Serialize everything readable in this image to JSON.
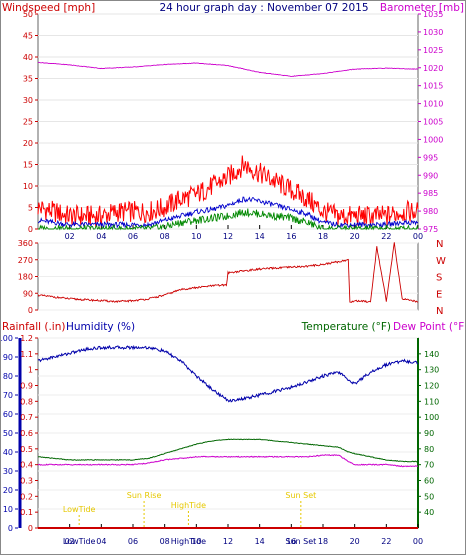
{
  "header": {
    "left_label": "Windspeed [mph]",
    "title": "24 hour graph day : November 07 2015",
    "right_label": "Barometer [mb]"
  },
  "colors": {
    "wind_gust": "#ff0000",
    "wind_avg": "#0000cc",
    "wind_low": "#008800",
    "barometer": "#cc00cc",
    "direction": "#cc0000",
    "rain": "#cc0000",
    "humidity": "#0000aa",
    "temperature": "#006600",
    "dewpoint": "#cc00cc",
    "annotation": "#e6c800"
  },
  "chart_data": [
    {
      "id": "wind",
      "type": "line",
      "x_ticks": [
        "02",
        "04",
        "06",
        "08",
        "10",
        "12",
        "14",
        "16",
        "18",
        "20",
        "22",
        "00"
      ],
      "ylim_left": [
        0,
        50
      ],
      "left_ticks": [
        "50",
        "45",
        "40",
        "35",
        "30",
        "25",
        "20",
        "15",
        "10",
        "5",
        "0"
      ],
      "ylim_right": [
        975,
        1035
      ],
      "right_ticks": [
        "1035",
        "1030",
        "1025",
        "1020",
        "1015",
        "1010",
        "1005",
        "1000",
        "995",
        "990",
        "985",
        "980",
        "975"
      ],
      "series": [
        {
          "key": "gust",
          "axis": "left",
          "x": [
            0,
            1,
            2,
            3,
            4,
            5,
            6,
            7,
            8,
            9,
            10,
            11,
            12,
            13,
            14,
            15,
            16,
            17,
            18,
            19,
            20,
            21,
            22,
            23,
            24
          ],
          "y": [
            5,
            4,
            3,
            3,
            3,
            4,
            4,
            4,
            5,
            7,
            8,
            10,
            12,
            15,
            13,
            11,
            9,
            7,
            4,
            3,
            3,
            3,
            3,
            4,
            4
          ]
        },
        {
          "key": "avg",
          "axis": "left",
          "x": [
            0,
            1,
            2,
            3,
            4,
            5,
            6,
            7,
            8,
            9,
            10,
            11,
            12,
            13,
            14,
            15,
            16,
            17,
            18,
            19,
            20,
            21,
            22,
            23,
            24
          ],
          "y": [
            2,
            1.5,
            1,
            1,
            1,
            1,
            1,
            1,
            2,
            3,
            4,
            4.5,
            5.5,
            7,
            6.5,
            5.5,
            4.5,
            3.5,
            1.5,
            1,
            1,
            1,
            1,
            1.5,
            1.5
          ]
        },
        {
          "key": "low",
          "axis": "left",
          "x": [
            0,
            1,
            2,
            3,
            4,
            5,
            6,
            7,
            8,
            9,
            10,
            11,
            12,
            13,
            14,
            15,
            16,
            17,
            18,
            19,
            20,
            21,
            22,
            23,
            24
          ],
          "y": [
            0,
            0,
            0,
            0,
            0,
            0,
            0,
            0,
            0.5,
            1.5,
            2,
            2.5,
            3,
            4,
            3.5,
            3,
            2.5,
            1.5,
            0,
            0,
            0,
            0,
            0,
            0,
            0
          ]
        },
        {
          "key": "barometer",
          "axis": "right",
          "x": [
            0,
            2,
            4,
            6,
            8,
            10,
            12,
            14,
            16,
            18,
            20,
            22,
            24
          ],
          "y": [
            1021.5,
            1020.8,
            1019.8,
            1020.2,
            1020.9,
            1021.3,
            1020.6,
            1018.7,
            1017.6,
            1018.4,
            1019.6,
            1019.9,
            1019.6
          ]
        }
      ]
    },
    {
      "id": "direction",
      "type": "line",
      "ylim": [
        0,
        360
      ],
      "left_ticks": [
        "360",
        "270",
        "180",
        "90",
        "0"
      ],
      "compass_labels": [
        "N",
        "W",
        "S",
        "E",
        "N"
      ],
      "series": [
        {
          "key": "direction",
          "x": [
            0,
            1,
            2,
            3,
            4,
            5,
            6,
            7,
            8,
            9,
            10,
            11,
            11.9,
            12,
            13,
            14,
            15,
            16,
            17,
            18,
            19,
            19.6,
            19.7,
            20,
            21,
            21.4,
            22,
            22.5,
            23,
            24
          ],
          "y": [
            80,
            70,
            60,
            55,
            50,
            45,
            50,
            60,
            80,
            110,
            120,
            130,
            135,
            200,
            210,
            220,
            225,
            230,
            235,
            245,
            260,
            270,
            40,
            50,
            45,
            340,
            45,
            360,
            60,
            45
          ]
        }
      ]
    },
    {
      "id": "climate",
      "type": "line",
      "left_label": "Rainfall (.in)",
      "left_label2": "Humidity (%)",
      "right_label": "Temperature (°F)",
      "right_label2": "Dew Point (°F)",
      "x_ticks": [
        "02",
        "04",
        "06",
        "08",
        "10",
        "12",
        "14",
        "16",
        "18",
        "20",
        "22",
        "00"
      ],
      "ylim_humidity": [
        0,
        100
      ],
      "humidity_ticks": [
        "100",
        "90",
        "80",
        "70",
        "60",
        "50",
        "40",
        "30",
        "20",
        "10",
        "0"
      ],
      "ylim_rain": [
        0,
        1.2
      ],
      "rain_ticks": [
        "1.2",
        "1.1",
        "1",
        "0.9",
        "0.8",
        "0.7",
        "0.6",
        "0.5",
        "0.4",
        "0.3",
        "0.2",
        "0.1",
        "0"
      ],
      "ylim_temp": [
        30,
        150
      ],
      "temp_ticks": [
        "140",
        "130",
        "120",
        "110",
        "100",
        "90",
        "80",
        "70",
        "60",
        "50",
        "40"
      ],
      "annotations": [
        {
          "text": "LowTide",
          "x": 2.6,
          "row": "low"
        },
        {
          "text": "Sun Rise",
          "x": 6.7,
          "row": "high"
        },
        {
          "text": "HighTide",
          "x": 9.5,
          "row": "mid"
        },
        {
          "text": "Sun Set",
          "x": 16.6,
          "row": "high"
        }
      ],
      "bottom_text": [
        {
          "text": "LowTide",
          "x": 2.6
        },
        {
          "text": "HighTide",
          "x": 9.5
        },
        {
          "text": "Sun Set",
          "x": 16.6
        }
      ],
      "series": [
        {
          "key": "humidity",
          "axis": "humidity",
          "x": [
            0,
            1,
            2,
            3,
            4,
            5,
            6,
            7,
            8,
            9,
            10,
            11,
            12,
            13,
            14,
            15,
            16,
            17,
            18,
            19,
            19.6,
            20,
            21,
            22,
            23,
            24
          ],
          "y": [
            88,
            90,
            92,
            94,
            95,
            95,
            95,
            95,
            93,
            88,
            80,
            73,
            67,
            68,
            70,
            72,
            74,
            77,
            80,
            82,
            78,
            76,
            82,
            86,
            88,
            87
          ]
        },
        {
          "key": "rain",
          "axis": "rain",
          "x": [
            0,
            24
          ],
          "y": [
            0,
            0
          ]
        },
        {
          "key": "temperature",
          "axis": "temp",
          "x": [
            0,
            1,
            2,
            3,
            4,
            5,
            6,
            7,
            8,
            9,
            10,
            11,
            12,
            13,
            14,
            15,
            16,
            17,
            18,
            19,
            19.6,
            20,
            21,
            22,
            23,
            24
          ],
          "y": [
            75,
            74,
            73,
            73,
            73,
            73,
            73,
            74,
            77,
            80,
            83,
            85,
            86,
            86,
            86,
            85,
            84,
            83,
            82,
            81,
            78,
            77,
            75,
            73,
            72,
            72
          ]
        },
        {
          "key": "dewpoint",
          "axis": "temp",
          "x": [
            0,
            1,
            2,
            3,
            4,
            5,
            6,
            7,
            8,
            9,
            10,
            11,
            12,
            13,
            14,
            15,
            16,
            17,
            18,
            19,
            19.6,
            20,
            21,
            22,
            23,
            24
          ],
          "y": [
            70,
            70,
            70,
            70,
            70,
            70,
            70,
            71,
            73,
            74,
            75,
            75,
            75,
            75,
            75,
            75,
            75,
            75,
            76,
            76,
            72,
            70,
            70,
            70,
            69,
            69
          ]
        }
      ]
    }
  ]
}
